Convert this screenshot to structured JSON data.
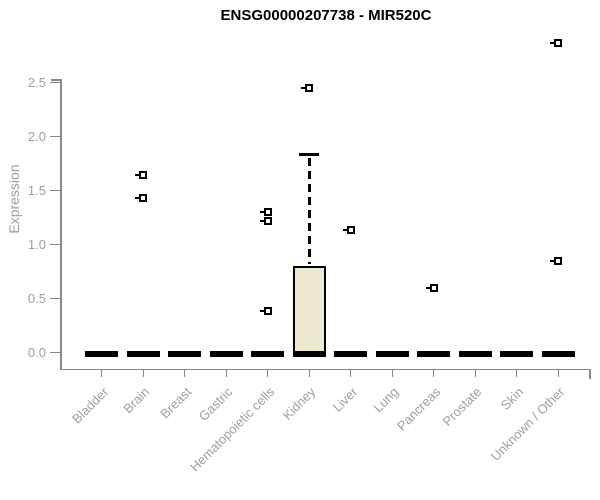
{
  "chart_data": {
    "type": "boxplot",
    "title": "ENSG00000207738 - MIR520C",
    "ylabel": "Expression",
    "xlabel": "",
    "ylim": [
      0,
      2.9
    ],
    "grid": false,
    "legend": "none",
    "y_ticks": [
      0,
      0.5,
      1,
      1.5,
      2,
      2.5
    ],
    "categories": [
      "Bladder",
      "Brain",
      "Breast",
      "Gastric",
      "Hematopoietic cells",
      "Kidney",
      "Liver",
      "Lung",
      "Pancreas",
      "Prostate",
      "Skin",
      "Unknown / Other"
    ],
    "boxes": [
      {
        "category": "Bladder",
        "median": 0,
        "q1": 0,
        "q3": 0,
        "whisker_low": 0,
        "whisker_high": 0,
        "outliers": []
      },
      {
        "category": "Brain",
        "median": 0,
        "q1": 0,
        "q3": 0,
        "whisker_low": 0,
        "whisker_high": 0,
        "outliers": [
          1.65,
          1.43
        ]
      },
      {
        "category": "Breast",
        "median": 0,
        "q1": 0,
        "q3": 0,
        "whisker_low": 0,
        "whisker_high": 0,
        "outliers": []
      },
      {
        "category": "Gastric",
        "median": 0,
        "q1": 0,
        "q3": 0,
        "whisker_low": 0,
        "whisker_high": 0,
        "outliers": []
      },
      {
        "category": "Hematopoietic cells",
        "median": 0,
        "q1": 0,
        "q3": 0,
        "whisker_low": 0,
        "whisker_high": 0,
        "outliers": [
          1.3,
          1.22,
          0.39
        ]
      },
      {
        "category": "Kidney",
        "median": 0,
        "q1": 0,
        "q3": 0.8,
        "whisker_low": 0,
        "whisker_high": 1.84,
        "outliers": [
          2.45
        ]
      },
      {
        "category": "Liver",
        "median": 0,
        "q1": 0,
        "q3": 0,
        "whisker_low": 0,
        "whisker_high": 0,
        "outliers": [
          1.14
        ]
      },
      {
        "category": "Lung",
        "median": 0,
        "q1": 0,
        "q3": 0,
        "whisker_low": 0,
        "whisker_high": 0,
        "outliers": []
      },
      {
        "category": "Pancreas",
        "median": 0,
        "q1": 0,
        "q3": 0,
        "whisker_low": 0,
        "whisker_high": 0,
        "outliers": [
          0.6
        ]
      },
      {
        "category": "Prostate",
        "median": 0,
        "q1": 0,
        "q3": 0,
        "whisker_low": 0,
        "whisker_high": 0,
        "outliers": []
      },
      {
        "category": "Skin",
        "median": 0,
        "q1": 0,
        "q3": 0,
        "whisker_low": 0,
        "whisker_high": 0,
        "outliers": []
      },
      {
        "category": "Unknown / Other",
        "median": 0,
        "q1": 0,
        "q3": 0,
        "whisker_low": 0,
        "whisker_high": 0,
        "outliers": [
          2.87,
          0.85
        ]
      }
    ],
    "colors": {
      "box_fill": "#ede9d0",
      "box_border": "#000000",
      "whisker": "#000000",
      "axis": "#888888",
      "tick_label": "#9e9e9e",
      "title": "#000000"
    }
  }
}
